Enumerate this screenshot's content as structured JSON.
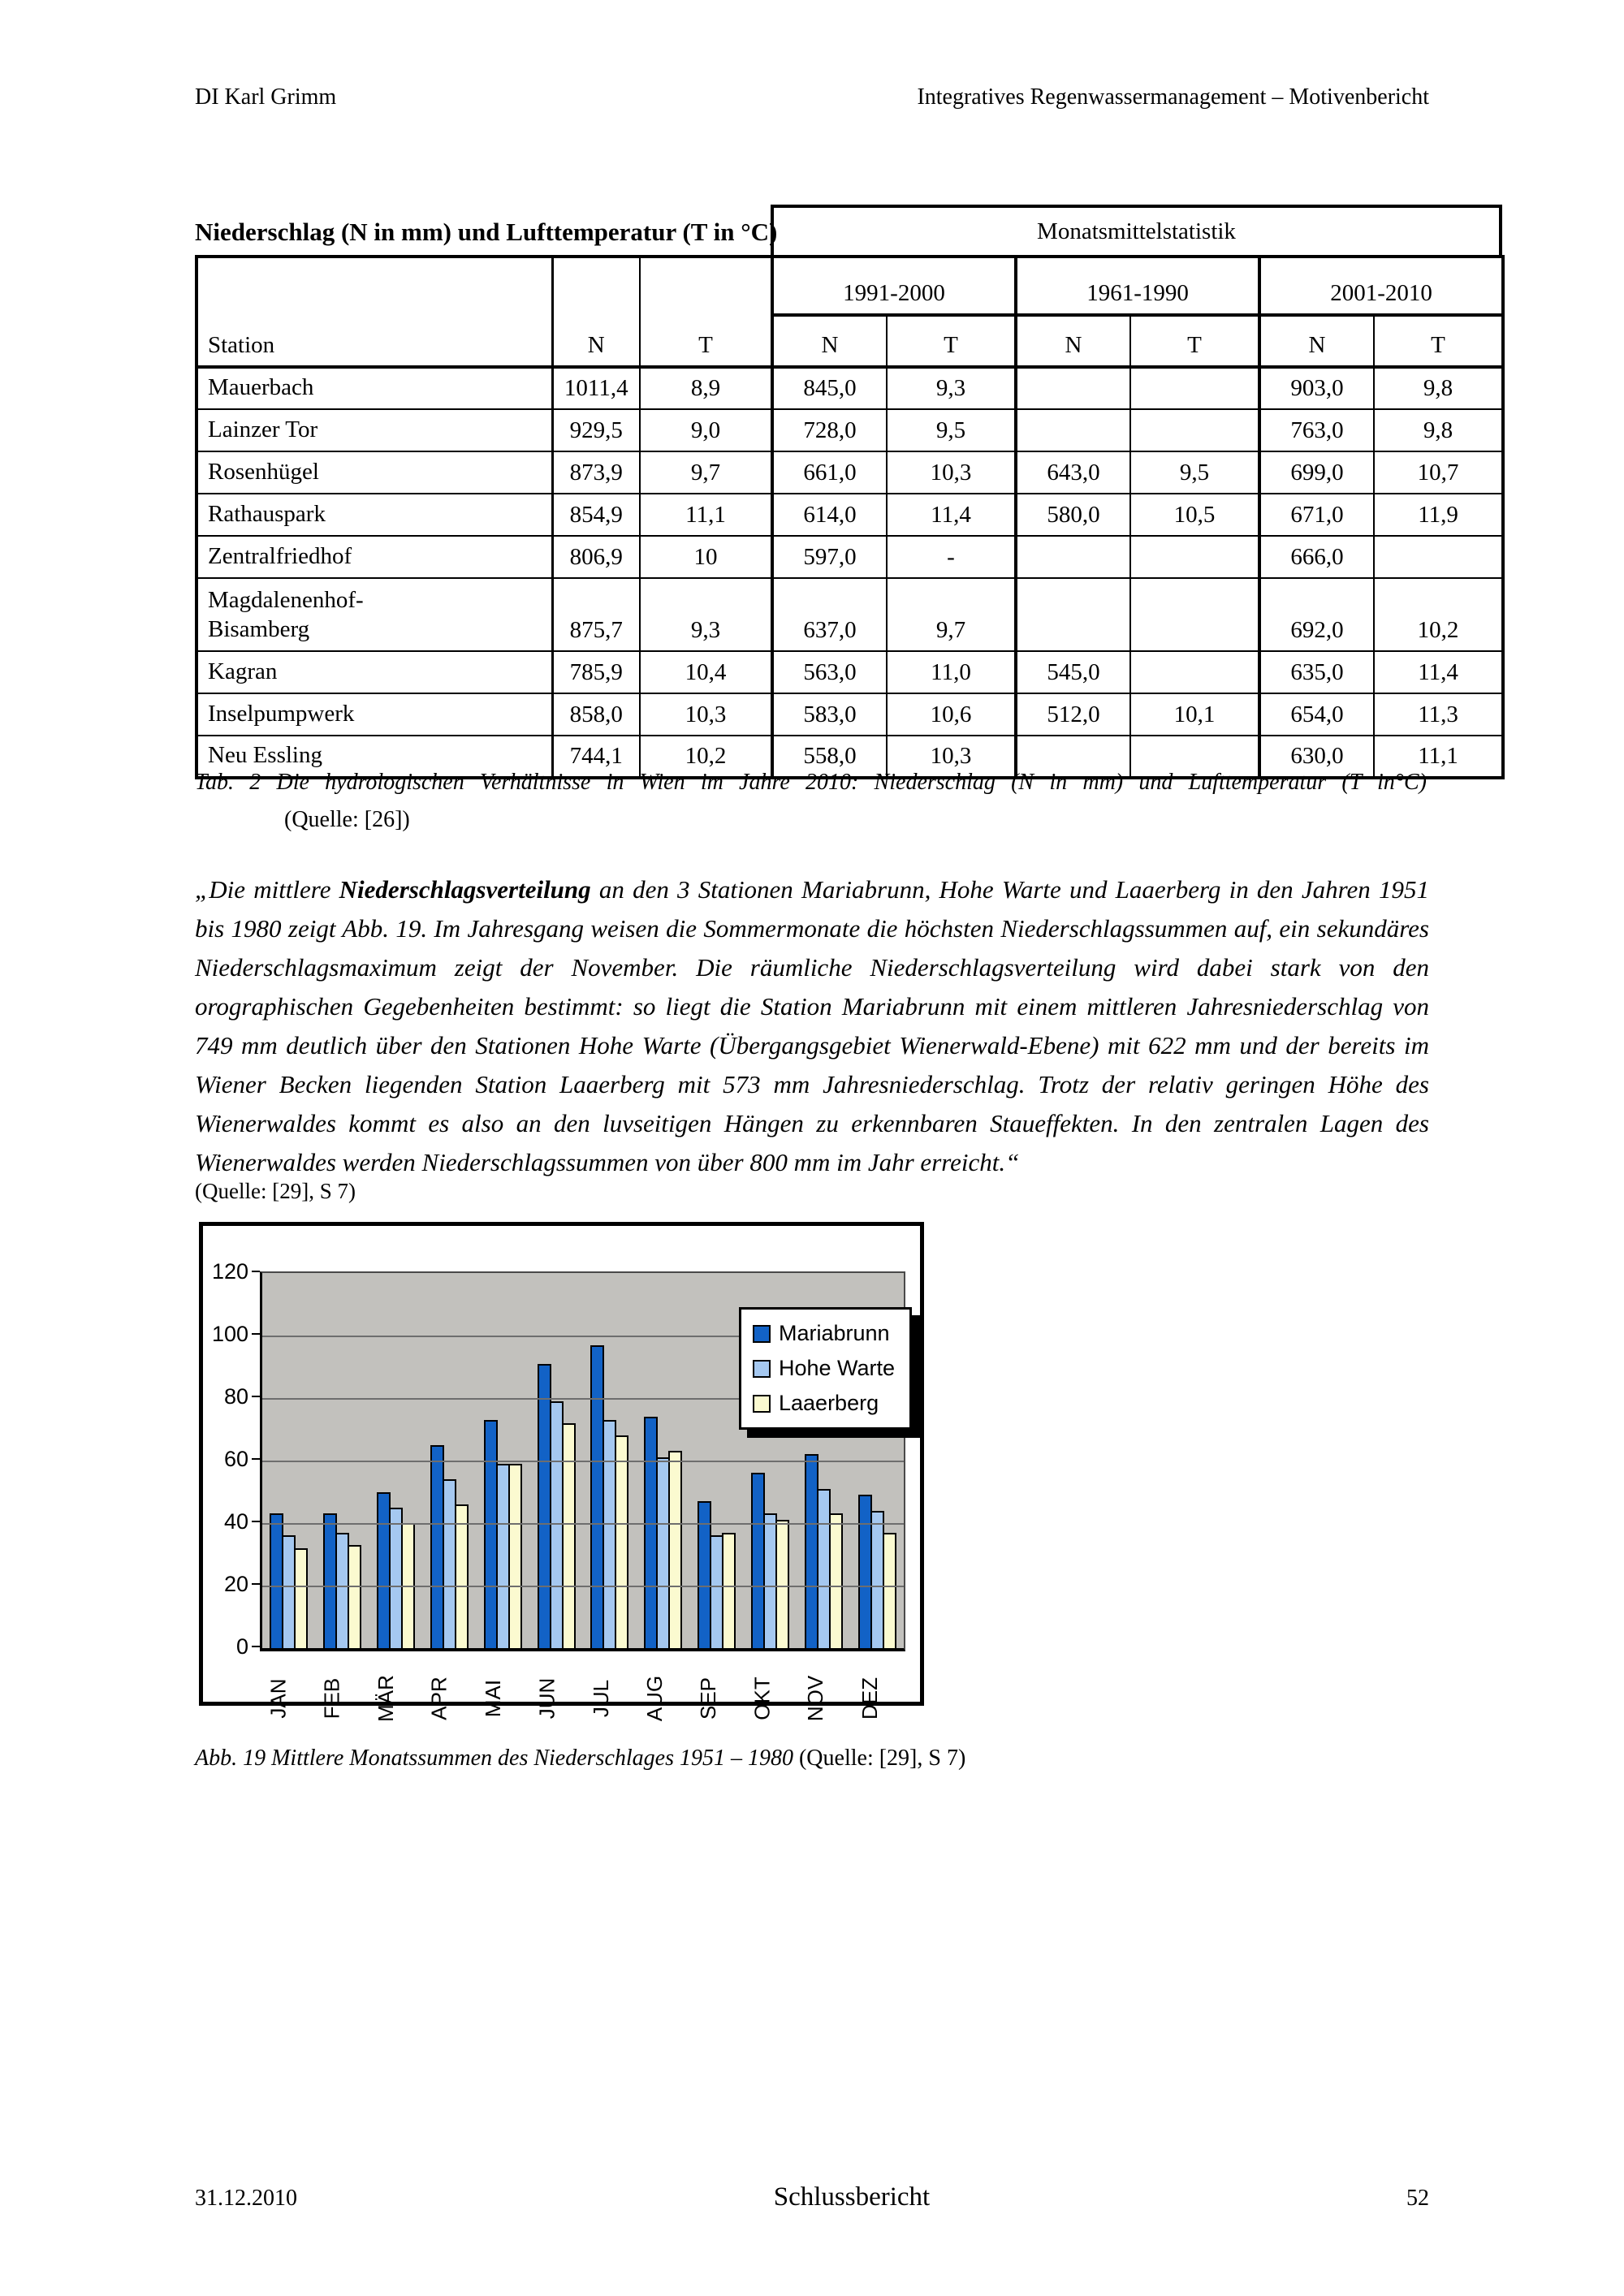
{
  "header": {
    "left": "DI Karl Grimm",
    "right": "Integratives Regenwassermanagement – Motivenbericht"
  },
  "section_title": "Niederschlag (N in mm) und Lufttemperatur (T in °C)",
  "table": {
    "overall_header": "Monatsmittelstatistik",
    "col_station": "Station",
    "col_n": "N",
    "col_t": "T",
    "groups": [
      "1991-2000",
      "1961-1990",
      "2001-2010"
    ],
    "rows": [
      {
        "station": "Mauerbach",
        "n": "1011,4",
        "t": "8,9",
        "cells": [
          "845,0",
          "9,3",
          "",
          "",
          "903,0",
          "9,8"
        ]
      },
      {
        "station": "Lainzer Tor",
        "n": "929,5",
        "t": "9,0",
        "cells": [
          "728,0",
          "9,5",
          "",
          "",
          "763,0",
          "9,8"
        ]
      },
      {
        "station": "Rosenhügel",
        "n": "873,9",
        "t": "9,7",
        "cells": [
          "661,0",
          "10,3",
          "643,0",
          "9,5",
          "699,0",
          "10,7"
        ]
      },
      {
        "station": "Rathauspark",
        "n": "854,9",
        "t": "11,1",
        "cells": [
          "614,0",
          "11,4",
          "580,0",
          "10,5",
          "671,0",
          "11,9"
        ]
      },
      {
        "station": "Zentralfriedhof",
        "n": "806,9",
        "t": "10",
        "cells": [
          "597,0",
          "-",
          "",
          "",
          "666,0",
          ""
        ]
      },
      {
        "station": "Magdalenenhof-\nBisamberg",
        "n": "875,7",
        "t": "9,3",
        "cells": [
          "637,0",
          "9,7",
          "",
          "",
          "692,0",
          "10,2"
        ],
        "tall": true
      },
      {
        "station": "Kagran",
        "n": "785,9",
        "t": "10,4",
        "cells": [
          "563,0",
          "11,0",
          "545,0",
          "",
          "635,0",
          "11,4"
        ]
      },
      {
        "station": "Inselpumpwerk",
        "n": "858,0",
        "t": "10,3",
        "cells": [
          "583,0",
          "10,6",
          "512,0",
          "10,1",
          "654,0",
          "11,3"
        ]
      },
      {
        "station": "Neu Essling",
        "n": "744,1",
        "t": "10,2",
        "cells": [
          "558,0",
          "10,3",
          "",
          "",
          "630,0",
          "11,1"
        ]
      }
    ]
  },
  "table_caption": {
    "line1": "Tab. 2 Die hydrologischen Verhältnisse in Wien im Jahre 2010: Niederschlag (N in mm) und Lufttemperatur (T in°C)",
    "line2": "(Quelle: [26])"
  },
  "paragraph": {
    "part1": "„Die mittlere ",
    "bold": "Niederschlagsverteilung",
    "part2": " an den 3 Stationen Mariabrunn, Hohe Warte und Laaerberg in den Jahren 1951 bis 1980 zeigt Abb. 19. Im Jahresgang weisen die Sommermonate die höchsten Niederschlagssummen auf, ein sekundäres Niederschlagsmaximum zeigt der November. Die räumliche Niederschlagsverteilung wird dabei stark von den orographischen Gegebenheiten bestimmt: so liegt die Station Mariabrunn mit einem mittleren Jahresniederschlag von 749 mm deutlich über den Stationen Hohe Warte (Übergangsgebiet Wienerwald-Ebene) mit 622 mm und der bereits im Wiener Becken liegenden Station Laaerberg mit 573 mm Jahresniederschlag. Trotz der relativ geringen Höhe des Wienerwaldes kommt es also an den luvseitigen Hängen zu erkennbaren Staueffekten. In den zentralen Lagen des Wienerwaldes werden Niederschlagssummen von über 800 mm im Jahr erreicht.“",
    "source": "(Quelle: [29], S 7)"
  },
  "chart_data": {
    "type": "bar",
    "categories": [
      "JAN",
      "FEB",
      "MÄR",
      "APR",
      "MAI",
      "JUN",
      "JUL",
      "AUG",
      "SEP",
      "OKT",
      "NOV",
      "DEZ"
    ],
    "series": [
      {
        "name": "Mariabrunn",
        "color": "#1262c6",
        "values": [
          43,
          43,
          50,
          65,
          73,
          91,
          97,
          74,
          47,
          56,
          62,
          49
        ]
      },
      {
        "name": "Hohe Warte",
        "color": "#a5c8f0",
        "values": [
          36,
          37,
          45,
          54,
          59,
          79,
          73,
          61,
          36,
          43,
          51,
          44
        ]
      },
      {
        "name": "Laaerberg",
        "color": "#fbfad0",
        "values": [
          32,
          33,
          40,
          46,
          59,
          72,
          68,
          63,
          37,
          41,
          43,
          37
        ]
      }
    ],
    "title": "",
    "xlabel": "",
    "ylabel": "",
    "ylim": [
      0,
      120
    ],
    "ytick_step": 20,
    "grid": true,
    "legend_position": "top-right",
    "plot_bg": "#c2c1bd"
  },
  "chart_caption": {
    "italic": "Abb. 19 Mittlere Monatssummen des Niederschlages 1951 – 1980 ",
    "normal": "(Quelle: [29], S 7)"
  },
  "footer": {
    "date": "31.12.2010",
    "center": "Schlussbericht",
    "page": "52"
  }
}
